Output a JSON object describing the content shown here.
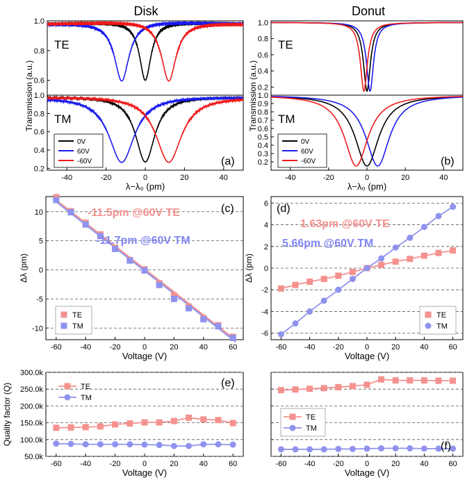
{
  "figure": {
    "col_titles": [
      "Disk",
      "Donut"
    ]
  },
  "colors": {
    "black": "#000000",
    "blue": "#1a1aee",
    "red": "#ee1a1a",
    "te": "#f4928f",
    "tm": "#8f93ee",
    "text_te": "#f4928f",
    "text_tm": "#7f86f2",
    "grid": "#555555"
  },
  "chart_data": [
    {
      "id": "a_te",
      "type": "line",
      "panel": "Disk TE",
      "label": "TE",
      "xlim": [
        -50,
        50
      ],
      "ylim": [
        0.5,
        1.0
      ],
      "xticks": [],
      "yticks": [
        0.6,
        0.8,
        1.0
      ],
      "ytick_labels": [
        "0.6",
        "0.8",
        "1.0"
      ],
      "series": [
        {
          "name": "0V",
          "color": "black",
          "center": 0,
          "width": 3.5,
          "min": 0.6,
          "ripple": 0.012
        },
        {
          "name": "60V",
          "color": "blue",
          "center": -12,
          "width": 4.5,
          "min": 0.6,
          "ripple": 0.012
        },
        {
          "name": "-60V",
          "color": "red",
          "center": 12,
          "width": 4.5,
          "min": 0.6,
          "ripple": 0.012
        }
      ]
    },
    {
      "id": "a_tm",
      "type": "line",
      "panel": "Disk TM",
      "label": "TM",
      "panel_letter": "(a)",
      "xlim": [
        -50,
        50
      ],
      "ylim": [
        0.18,
        1.0
      ],
      "xticks": [
        -40,
        -20,
        0,
        20,
        40
      ],
      "yticks": [
        0.2,
        0.4,
        0.6,
        0.8,
        1.0
      ],
      "ytick_labels": [
        "0.2",
        "0.4",
        "0.6",
        "0.8",
        "1.0"
      ],
      "xlabel": "λ−λ₀ (pm)",
      "legend": [
        "0V",
        "60V",
        "-60V"
      ],
      "series": [
        {
          "name": "0V",
          "color": "black",
          "center": 0,
          "width": 6,
          "min": 0.27,
          "ripple": 0.012
        },
        {
          "name": "60V",
          "color": "blue",
          "center": -12,
          "width": 8,
          "min": 0.27,
          "ripple": 0.012
        },
        {
          "name": "-60V",
          "color": "red",
          "center": 12,
          "width": 8,
          "min": 0.27,
          "ripple": 0.012
        }
      ]
    },
    {
      "id": "b_te",
      "type": "line",
      "panel": "Donut TE",
      "label": "TE",
      "xlim": [
        -50,
        50
      ],
      "ylim": [
        0.1,
        1.02
      ],
      "xticks": [],
      "yticks": [
        0.2,
        0.4,
        0.6,
        0.8,
        1.0
      ],
      "ytick_labels": [
        "0.2",
        "0.4",
        "0.6",
        "0.8",
        "1.0"
      ],
      "series": [
        {
          "name": "0V",
          "color": "black",
          "center": 0,
          "width": 2.2,
          "min": 0.15,
          "ripple": 0
        },
        {
          "name": "60V",
          "color": "blue",
          "center": 1.6,
          "width": 2.2,
          "min": 0.15,
          "ripple": 0
        },
        {
          "name": "-60V",
          "color": "red",
          "center": -1.6,
          "width": 2.2,
          "min": 0.15,
          "ripple": 0
        }
      ]
    },
    {
      "id": "b_tm",
      "type": "line",
      "panel": "Donut TM",
      "label": "TM",
      "panel_letter": "(b)",
      "xlim": [
        -50,
        50
      ],
      "ylim": [
        0.1,
        1.0
      ],
      "xticks": [
        -40,
        -20,
        0,
        20,
        40
      ],
      "yticks": [
        0.2,
        0.3,
        0.4,
        0.5,
        0.6,
        0.7,
        0.8,
        0.9,
        1.0
      ],
      "ytick_labels": [
        "0.2",
        "0.3",
        "0.4",
        "0.5",
        "0.6",
        "0.7",
        "0.8",
        "0.9",
        "1.0"
      ],
      "xlabel": "λ−λ₀ (pm)",
      "legend": [
        "0V",
        "60V",
        "-60V"
      ],
      "series": [
        {
          "name": "0V",
          "color": "black",
          "center": 0,
          "width": 7.5,
          "min": 0.15,
          "ripple": 0
        },
        {
          "name": "60V",
          "color": "blue",
          "center": 5.6,
          "width": 7.5,
          "min": 0.15,
          "ripple": 0
        },
        {
          "name": "-60V",
          "color": "red",
          "center": -5.6,
          "width": 7.5,
          "min": 0.15,
          "ripple": 0
        }
      ]
    },
    {
      "id": "c",
      "type": "scatter",
      "panel_letter": "(c)",
      "xlim": [
        -67,
        67
      ],
      "ylim": [
        -12,
        12.6
      ],
      "xticks": [
        -60,
        -40,
        -20,
        0,
        20,
        40,
        60
      ],
      "yticks": [
        -10,
        -5,
        0,
        5,
        10
      ],
      "xlabel": "Voltage (V)",
      "ylabel": "Δλ (pm)",
      "annotations": [
        {
          "text": "-11.5pm @60V TE",
          "color": "text_te"
        },
        {
          "text": "-11.7pm @60V TM",
          "color": "text_tm"
        }
      ],
      "x": [
        -60,
        -50,
        -40,
        -30,
        -20,
        -10,
        0,
        10,
        20,
        30,
        40,
        50,
        60
      ],
      "series": [
        {
          "name": "TE",
          "marker": "square",
          "color": "te",
          "values": [
            12.5,
            10.1,
            8.1,
            6.1,
            3.8,
            1.7,
            0.1,
            -2.3,
            -4.4,
            -6.3,
            -8.3,
            -9.5,
            -11.5
          ]
        },
        {
          "name": "TM",
          "marker": "square",
          "color": "tm",
          "values": [
            12.0,
            9.9,
            7.8,
            5.8,
            3.6,
            1.6,
            -0.1,
            -2.6,
            -5.0,
            -6.6,
            -8.5,
            -9.7,
            -11.7
          ]
        }
      ],
      "fits": [
        {
          "color": "te",
          "slope": -0.1975,
          "intercept": 0.15
        },
        {
          "color": "tm",
          "slope": -0.1975,
          "intercept": -0.15
        }
      ],
      "legend": [
        "TE",
        "TM"
      ]
    },
    {
      "id": "d",
      "type": "scatter",
      "panel_letter": "(d)",
      "xlim": [
        -67,
        67
      ],
      "ylim": [
        -6.6,
        6.6
      ],
      "xticks": [
        -60,
        -40,
        -20,
        0,
        20,
        40,
        60
      ],
      "yticks": [
        -6,
        -4,
        -2,
        0,
        2,
        4,
        6
      ],
      "xlabel": "Voltage (V)",
      "ylabel": "Δλ (pm)",
      "annotations": [
        {
          "text": "1.63pm @60V TE",
          "color": "text_te"
        },
        {
          "text": "5.66pm @60V TM",
          "color": "text_tm"
        }
      ],
      "x": [
        -60,
        -50,
        -40,
        -30,
        -20,
        -10,
        0,
        10,
        20,
        30,
        40,
        50,
        60
      ],
      "series": [
        {
          "name": "TE",
          "marker": "square",
          "color": "te",
          "values": [
            -1.88,
            -1.55,
            -1.25,
            -1.0,
            -0.7,
            -0.35,
            0.0,
            0.3,
            0.6,
            0.85,
            1.15,
            1.4,
            1.63
          ]
        },
        {
          "name": "TM",
          "marker": "circle",
          "color": "tm",
          "values": [
            -6.1,
            -5.1,
            -4.0,
            -3.0,
            -2.0,
            -1.0,
            0.0,
            0.9,
            1.9,
            2.8,
            3.8,
            4.8,
            5.66
          ]
        }
      ],
      "connect": true,
      "legend": [
        "TE",
        "TM"
      ]
    },
    {
      "id": "e",
      "type": "line",
      "panel_letter": "(e)",
      "xlim": [
        -67,
        67
      ],
      "ylim": [
        50000,
        300000
      ],
      "xticks": [
        -60,
        -40,
        -20,
        0,
        20,
        40,
        60
      ],
      "yticks": [
        50000,
        100000,
        150000,
        200000,
        250000,
        300000
      ],
      "ytick_labels": [
        "50.0k",
        "100.0k",
        "150.0k",
        "200.0k",
        "250.0k",
        "300.0k"
      ],
      "xlabel": "Voltage (V)",
      "ylabel": "Quality factor (Q)",
      "x": [
        -60,
        -50,
        -40,
        -30,
        -20,
        -10,
        0,
        10,
        20,
        30,
        40,
        50,
        60
      ],
      "series": [
        {
          "name": "TE",
          "marker": "square",
          "color": "te",
          "values": [
            135000,
            136000,
            137000,
            139000,
            145000,
            148000,
            151000,
            151000,
            155000,
            165000,
            160000,
            158000,
            149000
          ]
        },
        {
          "name": "TM",
          "marker": "circle",
          "color": "tm",
          "values": [
            88000,
            87000,
            86000,
            86000,
            86000,
            86000,
            85000,
            84000,
            81000,
            81000,
            86000,
            86000,
            85000
          ]
        }
      ],
      "legend": [
        "TE",
        "TM"
      ]
    },
    {
      "id": "f",
      "type": "line",
      "panel_letter": "(f)",
      "xlim": [
        -67,
        67
      ],
      "ylim": [
        50000,
        300000
      ],
      "xticks": [
        -60,
        -40,
        -20,
        0,
        20,
        40,
        60
      ],
      "yticks": [
        50000,
        100000,
        150000,
        200000,
        250000,
        300000
      ],
      "ytick_labels": [],
      "xlabel": "Voltage (V)",
      "x": [
        -60,
        -50,
        -40,
        -30,
        -20,
        -10,
        0,
        10,
        20,
        30,
        40,
        50,
        60
      ],
      "series": [
        {
          "name": "TE",
          "marker": "square",
          "color": "te",
          "values": [
            247000,
            249000,
            251000,
            253000,
            256000,
            259000,
            263000,
            279000,
            276000,
            276000,
            276000,
            275000,
            275000
          ]
        },
        {
          "name": "TM",
          "marker": "circle",
          "color": "tm",
          "values": [
            71000,
            71000,
            71000,
            71000,
            72000,
            72000,
            73000,
            74000,
            74000,
            74000,
            73000,
            73000,
            73000
          ]
        }
      ],
      "legend": [
        "TE",
        "TM"
      ]
    }
  ],
  "shared": {
    "transmission_ylabel": "Transmission (a.u.)"
  }
}
